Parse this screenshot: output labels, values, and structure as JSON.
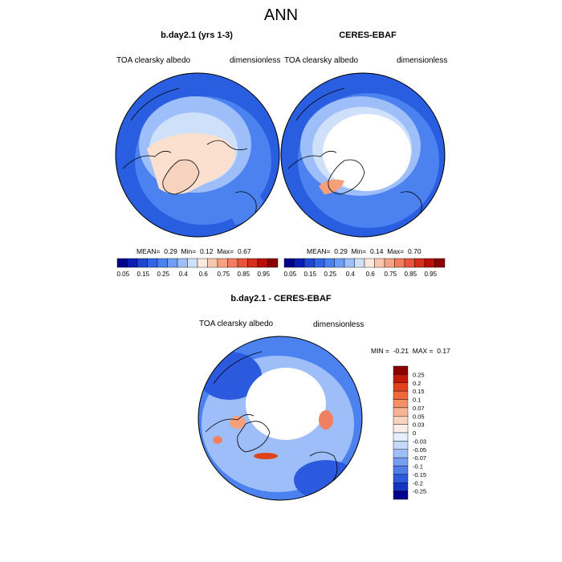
{
  "title": "ANN",
  "panels": [
    {
      "title": "b.day2.1 (yrs 1-3)",
      "variable": "TOA clearsky albedo",
      "units": "dimensionless",
      "stats": {
        "mean_label": "MEAN=",
        "mean": "0.29",
        "min_label": "Min=",
        "min": "0.12",
        "max_label": "Max=",
        "max": "0.67"
      }
    },
    {
      "title": "CERES-EBAF",
      "variable": "TOA clearsky albedo",
      "units": "dimensionless",
      "stats": {
        "mean_label": "MEAN=",
        "mean": "0.29",
        "min_label": "Min=",
        "min": "0.14",
        "max_label": "Max=",
        "max": "0.70"
      }
    },
    {
      "title": "b.day2.1 - CERES-EBAF",
      "variable": "TOA clearsky albedo",
      "units": "dimensionless",
      "stats": {
        "min_label": "MIN =",
        "min": "-0.21",
        "max_label": "MAX =",
        "max": "0.17"
      }
    }
  ],
  "colorbar_abs": {
    "colors": [
      "#00008b",
      "#0a1eb4",
      "#1e46d2",
      "#3264e6",
      "#4b82f0",
      "#6e9ff5",
      "#9dbef8",
      "#cfe0fb",
      "#fbe8dc",
      "#f9c7ad",
      "#f6a283",
      "#f27c5e",
      "#e9543d",
      "#d72d1d",
      "#b81006",
      "#8b0000"
    ],
    "tick_labels": [
      "0.05",
      "0.15",
      "0.25",
      "0.4",
      "0.6",
      "0.75",
      "0.85",
      "0.95"
    ]
  },
  "colorbar_diff": {
    "colors_top_to_bottom": [
      "#8b0000",
      "#c01a0a",
      "#e0421c",
      "#f0683c",
      "#f58f66",
      "#f7b394",
      "#f9d3bd",
      "#fbeee6",
      "#e6efff",
      "#c6d9fb",
      "#9fbef8",
      "#779ef1",
      "#4f7ee8",
      "#2c5ade",
      "#1534c2",
      "#00008b"
    ],
    "tick_labels_top_to_bottom": [
      "0.25",
      "0.2",
      "0.15",
      "0.1",
      "0.07",
      "0.05",
      "0.03",
      "0",
      "-0.03",
      "-0.05",
      "-0.07",
      "-0.1",
      "-0.15",
      "-0.2",
      "-0.25"
    ]
  },
  "map_colors": {
    "dark_blue": "#1e50dc",
    "mid_blue": "#4b82f0",
    "light_blue": "#9dbef8",
    "pale_blue": "#cfe0fb",
    "peach": "#fbe0cf",
    "pale_peach": "#f7d2bf",
    "salmon": "#f5a07a",
    "white": "#ffffff"
  }
}
